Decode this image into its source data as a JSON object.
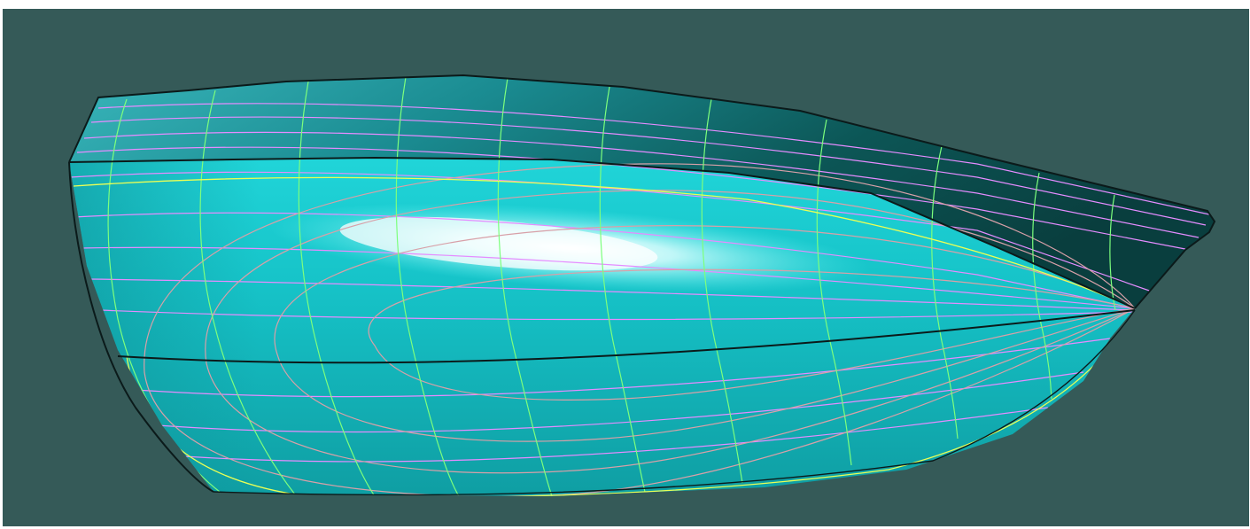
{
  "viewport": {
    "kind": "3d-cad-view",
    "background_color": "#355a58",
    "frame_color": "#ffffff"
  },
  "model": {
    "name": "hull-surface",
    "surface_color": "#1fd6d6",
    "highlight_color": "#ffffff",
    "shadow_color": "#0a3b3b",
    "edge_color": "#0b1a1a",
    "grid_colors": {
      "stations": "#7dff7d",
      "waterlines": "#e48cff",
      "buttocks": "#d6a0a0",
      "sheer": "#e8ff55"
    }
  }
}
